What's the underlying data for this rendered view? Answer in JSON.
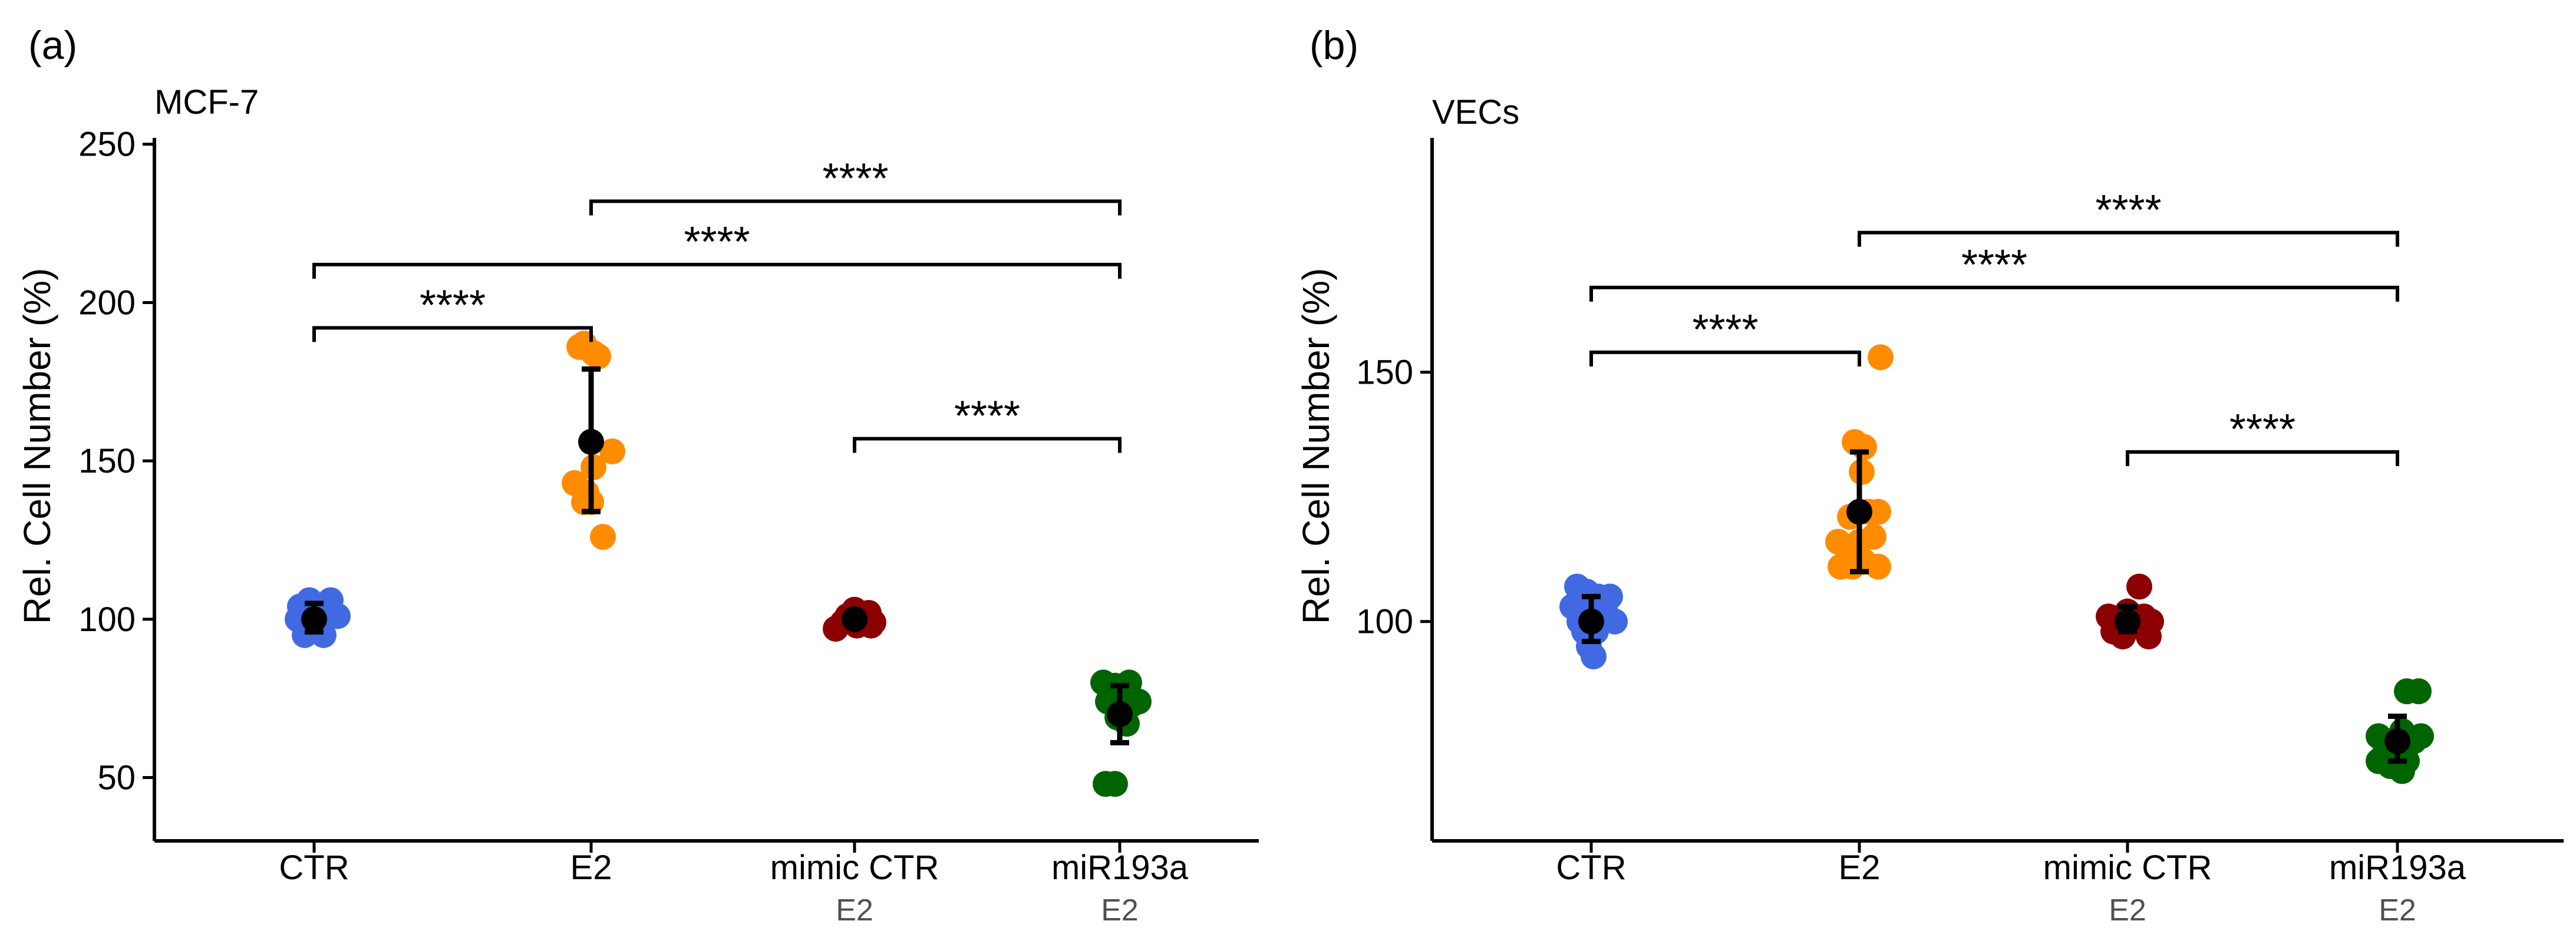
{
  "chart_data": [
    {
      "type": "scatter",
      "panel_label": "(a)",
      "title": "MCF-7",
      "ylabel": "Rel. Cell Number (%)",
      "xlabel": "",
      "ylim": [
        30,
        252
      ],
      "yticks": [
        50,
        100,
        150,
        200,
        250
      ],
      "categories": [
        "CTR",
        "E2",
        "mimic CTR",
        "miR193a"
      ],
      "sublabels": [
        "",
        "",
        "E2",
        "E2"
      ],
      "colors": [
        "#4169E1",
        "#FF8C00",
        "#8B0000",
        "#006400"
      ],
      "points": [
        [
          [
            -0.12,
            104
          ],
          [
            -0.04,
            106
          ],
          [
            0.06,
            104
          ],
          [
            0.14,
            106
          ],
          [
            -0.14,
            100
          ],
          [
            0.2,
            101
          ],
          [
            -0.08,
            95
          ],
          [
            0.0,
            97
          ],
          [
            0.08,
            95
          ],
          [
            -0.02,
            98
          ]
        ],
        [
          [
            -0.1,
            186
          ],
          [
            -0.06,
            187
          ],
          [
            0.06,
            183
          ],
          [
            0.02,
            184
          ],
          [
            0.18,
            153
          ],
          [
            -0.14,
            143
          ],
          [
            0.02,
            148
          ],
          [
            -0.04,
            140
          ],
          [
            0.0,
            137
          ],
          [
            -0.06,
            137
          ],
          [
            0.1,
            126
          ]
        ],
        [
          [
            -0.16,
            97
          ],
          [
            -0.1,
            99
          ],
          [
            -0.04,
            100
          ],
          [
            0.04,
            101
          ],
          [
            0.1,
            100
          ],
          [
            0.16,
            99
          ],
          [
            -0.06,
            101
          ],
          [
            0.02,
            98
          ],
          [
            0.12,
            102
          ],
          [
            0.0,
            103
          ],
          [
            0.14,
            98
          ]
        ],
        [
          [
            -0.14,
            80
          ],
          [
            -0.04,
            79
          ],
          [
            0.08,
            80
          ],
          [
            0.16,
            74
          ],
          [
            -0.1,
            74
          ],
          [
            0.0,
            72
          ],
          [
            0.1,
            73
          ],
          [
            -0.02,
            69
          ],
          [
            0.06,
            67
          ],
          [
            -0.12,
            48
          ],
          [
            -0.04,
            48
          ]
        ]
      ],
      "summary": [
        {
          "mean": 100,
          "lo": 96,
          "hi": 105
        },
        {
          "mean": 156,
          "lo": 134,
          "hi": 179
        },
        {
          "mean": 100,
          "lo": 98,
          "hi": 102
        },
        {
          "mean": 70,
          "lo": 61,
          "hi": 79
        }
      ],
      "brackets": [
        {
          "from": 0,
          "to": 1,
          "y": 192,
          "label": "****"
        },
        {
          "from": 0,
          "to": 3,
          "y": 212,
          "label": "****"
        },
        {
          "from": 1,
          "to": 3,
          "y": 232,
          "label": "****"
        },
        {
          "from": 2,
          "to": 3,
          "y": 157,
          "label": "****"
        }
      ]
    },
    {
      "type": "scatter",
      "panel_label": "(b)",
      "title": "VECs",
      "ylabel": "Rel. Cell Number (%)",
      "xlabel": "",
      "ylim": [
        56,
        197
      ],
      "yticks": [
        100,
        150
      ],
      "categories": [
        "CTR",
        "E2",
        "mimic CTR",
        "miR193a"
      ],
      "sublabels": [
        "",
        "",
        "E2",
        "E2"
      ],
      "colors": [
        "#4169E1",
        "#FF8C00",
        "#8B0000",
        "#006400"
      ],
      "points": [
        [
          [
            -0.12,
            107
          ],
          [
            -0.04,
            106
          ],
          [
            0.06,
            105
          ],
          [
            0.16,
            105
          ],
          [
            -0.16,
            103
          ],
          [
            0.0,
            103
          ],
          [
            0.12,
            102
          ],
          [
            -0.1,
            100
          ],
          [
            0.2,
            100
          ],
          [
            -0.06,
            98
          ],
          [
            0.04,
            98
          ],
          [
            -0.02,
            95
          ],
          [
            0.02,
            93
          ]
        ],
        [
          [
            0.18,
            153
          ],
          [
            -0.04,
            136
          ],
          [
            0.04,
            135
          ],
          [
            0.02,
            130
          ],
          [
            -0.18,
            116
          ],
          [
            -0.08,
            121
          ],
          [
            0.0,
            116
          ],
          [
            0.08,
            122
          ],
          [
            0.16,
            122
          ],
          [
            -0.1,
            115
          ],
          [
            0.12,
            117
          ],
          [
            -0.16,
            111
          ],
          [
            -0.06,
            111
          ],
          [
            0.04,
            112
          ],
          [
            0.16,
            111
          ]
        ],
        [
          [
            0.0,
            102
          ],
          [
            0.1,
            107
          ],
          [
            -0.16,
            101
          ],
          [
            -0.08,
            100
          ],
          [
            0.06,
            101
          ],
          [
            0.14,
            101
          ],
          [
            -0.12,
            98
          ],
          [
            -0.02,
            98
          ],
          [
            0.08,
            99
          ],
          [
            0.2,
            100
          ],
          [
            0.18,
            97
          ],
          [
            -0.04,
            97
          ]
        ],
        [
          [
            0.08,
            86
          ],
          [
            0.18,
            86
          ],
          [
            -0.16,
            77
          ],
          [
            -0.06,
            76
          ],
          [
            0.04,
            78
          ],
          [
            0.14,
            76
          ],
          [
            0.2,
            77
          ],
          [
            -0.12,
            73
          ],
          [
            -0.02,
            74
          ],
          [
            0.08,
            72
          ],
          [
            -0.16,
            72
          ],
          [
            -0.06,
            71
          ],
          [
            0.04,
            70
          ]
        ]
      ],
      "summary": [
        {
          "mean": 100,
          "lo": 96,
          "hi": 105
        },
        {
          "mean": 122,
          "lo": 110,
          "hi": 134
        },
        {
          "mean": 100,
          "lo": 98,
          "hi": 103
        },
        {
          "mean": 76,
          "lo": 72,
          "hi": 81
        }
      ],
      "brackets": [
        {
          "from": 0,
          "to": 1,
          "y": 154,
          "label": "****"
        },
        {
          "from": 0,
          "to": 3,
          "y": 167,
          "label": "****"
        },
        {
          "from": 1,
          "to": 3,
          "y": 178,
          "label": "****"
        },
        {
          "from": 2,
          "to": 3,
          "y": 134,
          "label": "****"
        }
      ]
    }
  ]
}
